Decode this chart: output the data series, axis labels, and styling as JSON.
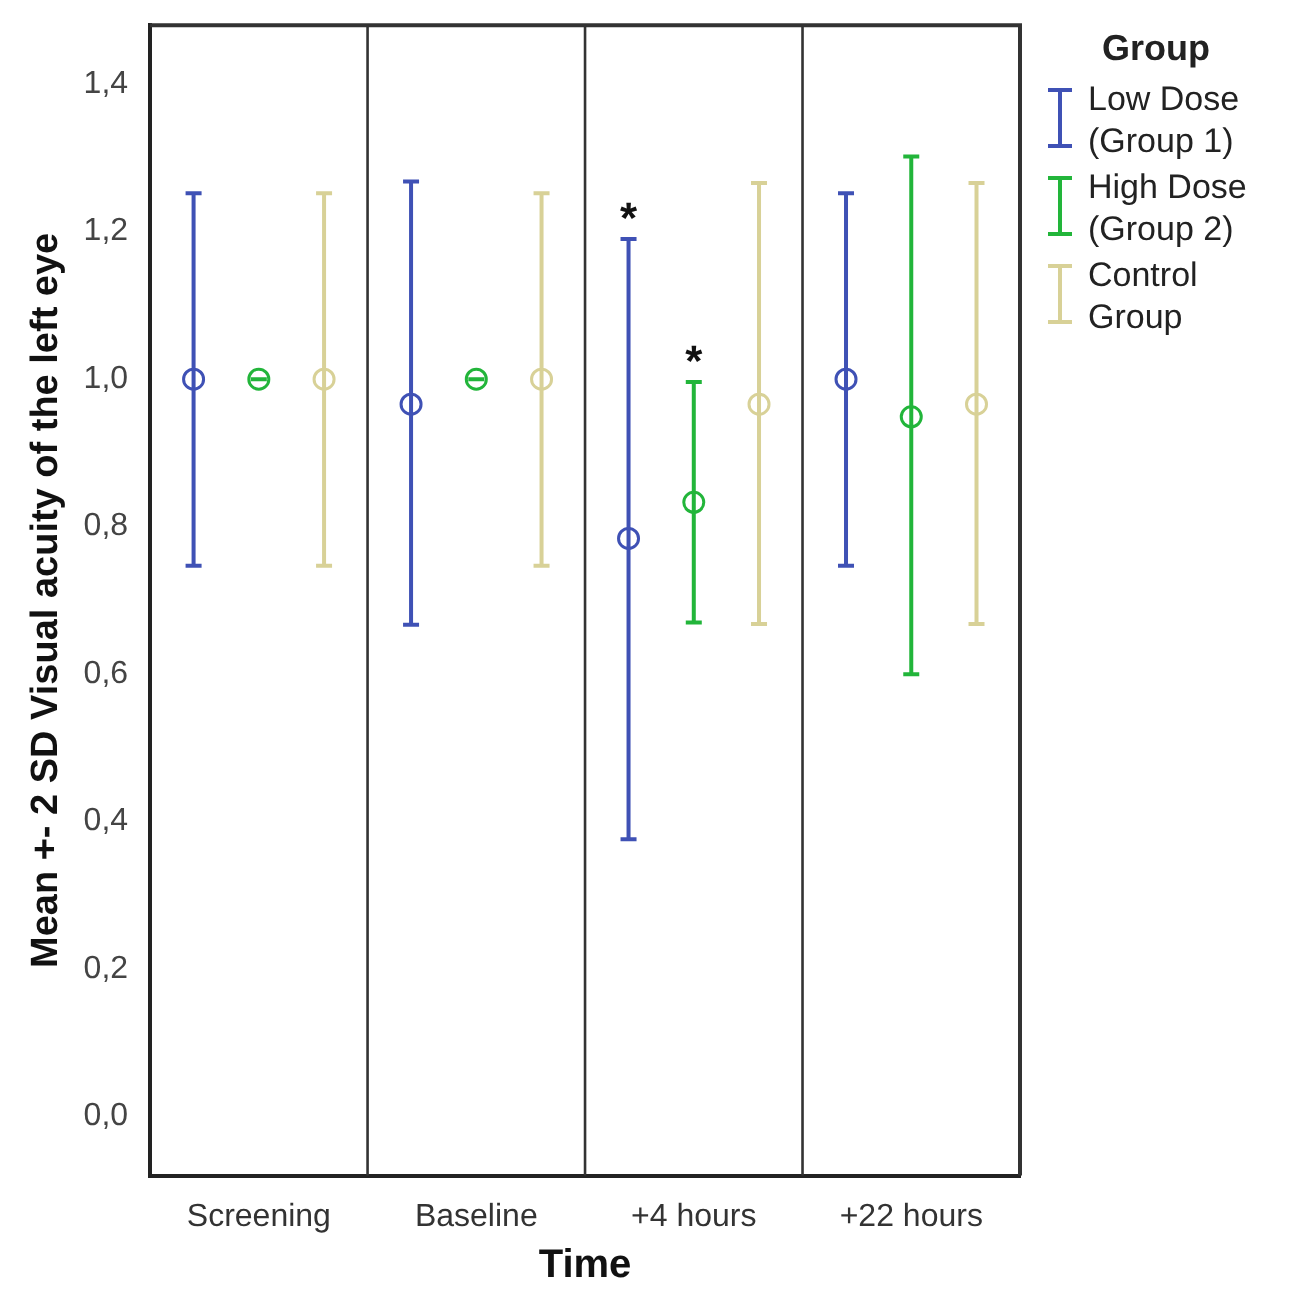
{
  "chart_data": {
    "type": "scatter",
    "xlabel": "Time",
    "ylabel": "Mean +- 2 SD Visual acuity of the left eye",
    "legend_title": "Group",
    "categories": [
      "Screening",
      "Baseline",
      "+4 hours",
      "+22 hours"
    ],
    "series": [
      {
        "name": "Low Dose (Group 1)",
        "color": "#3f51b5",
        "values": [
          1.0,
          0.966,
          0.784,
          1.0
        ],
        "errors": [
          [
            0.747,
            1.252
          ],
          [
            0.667,
            1.268
          ],
          [
            0.376,
            1.19
          ],
          [
            0.747,
            1.252
          ]
        ]
      },
      {
        "name": "High Dose (Group 2)",
        "color": "#22b53a",
        "values": [
          1.0,
          1.0,
          0.833,
          0.949
        ],
        "errors": [
          [
            1.0,
            1.0
          ],
          [
            1.0,
            1.0
          ],
          [
            0.67,
            0.996
          ],
          [
            0.6,
            1.302
          ]
        ]
      },
      {
        "name": "Control Group",
        "color": "#d8d197",
        "values": [
          1.0,
          1.0,
          0.966,
          0.966
        ],
        "errors": [
          [
            0.747,
            1.252
          ],
          [
            0.747,
            1.252
          ],
          [
            0.668,
            1.266
          ],
          [
            0.668,
            1.266
          ]
        ]
      }
    ],
    "ylim": [
      -0.08,
      1.48
    ],
    "yticks": [
      {
        "value": 0,
        "label": "0,0"
      },
      {
        "value": 0.2,
        "label": "0,2"
      },
      {
        "value": 0.4,
        "label": "0,4"
      },
      {
        "value": 0.6,
        "label": "0,6"
      },
      {
        "value": 0.8,
        "label": "0,8"
      },
      {
        "value": 1.0,
        "label": "1,0"
      },
      {
        "value": 1.2,
        "label": "1,2"
      },
      {
        "value": 1.4,
        "label": "1,4"
      }
    ],
    "annotations": [
      "*",
      "*"
    ],
    "grid": "x",
    "legend": "right",
    "marker": "circle"
  }
}
